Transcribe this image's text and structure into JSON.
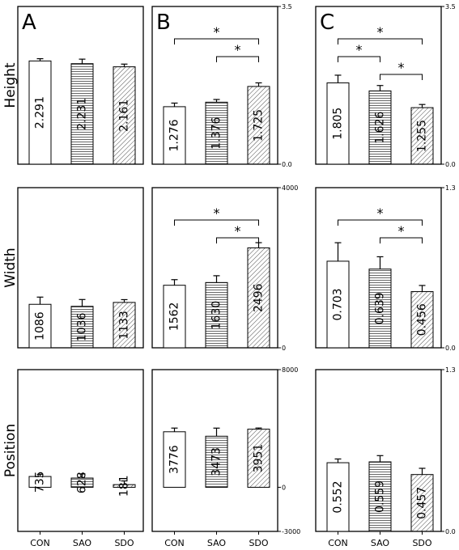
{
  "chart_data": {
    "type": "bar",
    "categories": [
      "CON",
      "SAO",
      "SDO"
    ],
    "row_labels": [
      "Height",
      "Width",
      "Position"
    ],
    "column_labels": [
      "A",
      "B",
      "C"
    ],
    "panels": [
      {
        "row": 0,
        "col": 0,
        "ylim": [
          0,
          3.5
        ],
        "values": [
          2.291,
          2.231,
          2.161
        ],
        "errors": [
          0.05,
          0.1,
          0.06
        ],
        "value_labels": [
          "2.291",
          "2.231",
          "2.161"
        ],
        "ticks": [],
        "brackets": []
      },
      {
        "row": 0,
        "col": 1,
        "ylim": [
          0,
          3.5
        ],
        "values": [
          1.276,
          1.376,
          1.725
        ],
        "errors": [
          0.08,
          0.06,
          0.08
        ],
        "value_labels": [
          "1.276",
          "1.376",
          "1.725"
        ],
        "ticks": [
          "0.0",
          "3.5"
        ],
        "brackets": [
          [
            0,
            2,
            "*"
          ],
          [
            1,
            2,
            "*"
          ]
        ]
      },
      {
        "row": 0,
        "col": 2,
        "ylim": [
          0,
          3.5
        ],
        "values": [
          1.805,
          1.626,
          1.255
        ],
        "errors": [
          0.17,
          0.12,
          0.07
        ],
        "value_labels": [
          "1.805",
          "1.626",
          "1.255"
        ],
        "ticks": [
          "0.0",
          "3.5"
        ],
        "brackets": [
          [
            0,
            2,
            "*"
          ],
          [
            0,
            1,
            "*"
          ],
          [
            1,
            2,
            "*"
          ]
        ]
      },
      {
        "row": 1,
        "col": 0,
        "ylim": [
          0,
          4000
        ],
        "values": [
          1086,
          1036,
          1133
        ],
        "errors": [
          180,
          170,
          70
        ],
        "value_labels": [
          "1086",
          "1036",
          "1133"
        ],
        "ticks": [],
        "brackets": []
      },
      {
        "row": 1,
        "col": 1,
        "ylim": [
          0,
          4000
        ],
        "values": [
          1562,
          1630,
          2496
        ],
        "errors": [
          140,
          170,
          130
        ],
        "value_labels": [
          "1562",
          "1630",
          "2496"
        ],
        "ticks": [
          "0",
          "4000"
        ],
        "brackets": [
          [
            0,
            2,
            "*"
          ],
          [
            1,
            2,
            "*"
          ]
        ]
      },
      {
        "row": 1,
        "col": 2,
        "ylim": [
          0,
          1.3
        ],
        "values": [
          0.703,
          0.639,
          0.456
        ],
        "errors": [
          0.15,
          0.1,
          0.05
        ],
        "value_labels": [
          "0.703",
          "0.639",
          "0.456"
        ],
        "ticks": [
          "0.0",
          "1.3"
        ],
        "brackets": [
          [
            0,
            2,
            "*"
          ],
          [
            1,
            2,
            "*"
          ]
        ]
      },
      {
        "row": 2,
        "col": 0,
        "ylim": [
          -3000,
          8000
        ],
        "values": [
          735,
          628,
          181
        ],
        "errors": [
          150,
          280,
          250
        ],
        "value_labels": [
          "735",
          "628",
          "181"
        ],
        "ticks": [],
        "brackets": []
      },
      {
        "row": 2,
        "col": 1,
        "ylim": [
          -3000,
          8000
        ],
        "values": [
          3776,
          3473,
          3951
        ],
        "errors": [
          250,
          550,
          80
        ],
        "value_labels": [
          "3776",
          "3473",
          "3951"
        ],
        "ticks": [
          "-3000",
          "0",
          "8000"
        ],
        "brackets": []
      },
      {
        "row": 2,
        "col": 2,
        "ylim": [
          0,
          1.3
        ],
        "values": [
          0.552,
          0.559,
          0.457
        ],
        "errors": [
          0.03,
          0.05,
          0.05
        ],
        "value_labels": [
          "0.552",
          "0.559",
          "0.457"
        ],
        "ticks": [
          "0.0",
          "1.3"
        ],
        "brackets": []
      }
    ],
    "fills": [
      "open",
      "horizontal-hatch",
      "diagonal-hatch"
    ],
    "colors": {
      "line": "#000000",
      "background": "#ffffff"
    }
  }
}
